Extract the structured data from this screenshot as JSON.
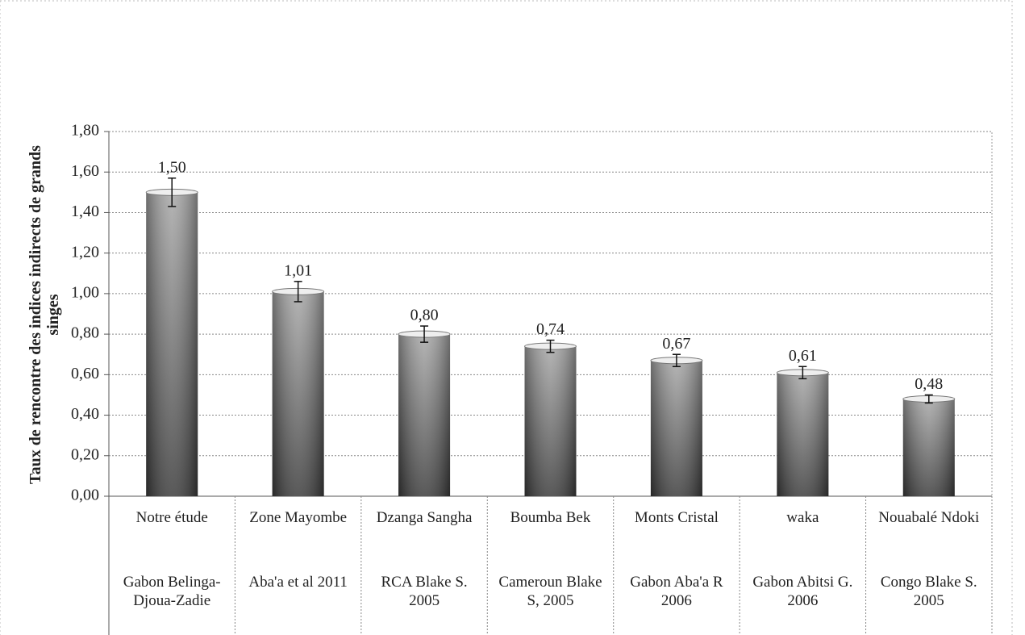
{
  "chart_data": {
    "type": "bar",
    "y_label": "Taux de rencontre des indices indirects de grands singes",
    "categories": [
      "Notre étude",
      "Zone Mayombe",
      "Dzanga Sangha",
      "Boumba Bek",
      "Monts Cristal",
      "waka",
      "Nouabalé Ndoki"
    ],
    "subcategories": [
      "Gabon Belinga-Djoua-Zadie",
      "Aba'a et al 2011",
      "RCA Blake S. 2005",
      "Cameroun Blake S, 2005",
      "Gabon Aba'a R 2006",
      "Gabon Abitsi G. 2006",
      "Congo Blake S. 2005"
    ],
    "values": [
      1.5,
      1.01,
      0.8,
      0.74,
      0.67,
      0.61,
      0.48
    ],
    "value_labels": [
      "1,50",
      "1,01",
      "0,80",
      "0,74",
      "0,67",
      "0,61",
      "0,48"
    ],
    "errors": [
      0.07,
      0.05,
      0.04,
      0.03,
      0.03,
      0.03,
      0.02
    ],
    "color": "#6a6a6a",
    "ylim": [
      0,
      1.8
    ],
    "yticks": [
      {
        "value": 0,
        "label": "0,00"
      },
      {
        "value": 0.2,
        "label": "0,20"
      },
      {
        "value": 0.4,
        "label": "0,40"
      },
      {
        "value": 0.6,
        "label": "0,60"
      },
      {
        "value": 0.8,
        "label": "0,80"
      },
      {
        "value": 1.0,
        "label": "1,00"
      },
      {
        "value": 1.2,
        "label": "1,20"
      },
      {
        "value": 1.4,
        "label": "1,40"
      },
      {
        "value": 1.6,
        "label": "1,60"
      },
      {
        "value": 1.8,
        "label": "1,80"
      }
    ],
    "grid": true
  }
}
